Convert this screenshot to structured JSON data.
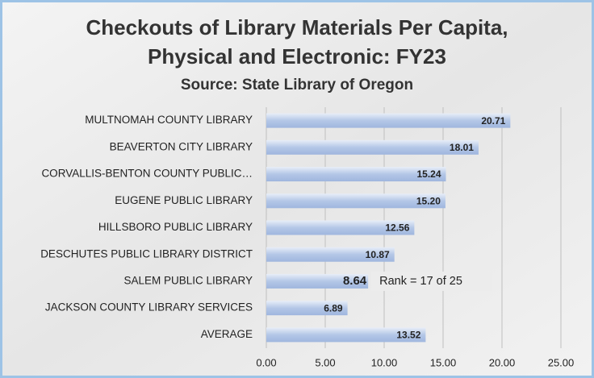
{
  "chart_data": {
    "type": "hbar",
    "title": [
      "Checkouts of Library Materials Per Capita,",
      "Physical and Electronic: FY23"
    ],
    "subtitle": "Source: State Library of Oregon",
    "categories": [
      "MULTNOMAH COUNTY LIBRARY",
      "BEAVERTON CITY LIBRARY",
      "CORVALLIS-BENTON COUNTY PUBLIC…",
      "EUGENE PUBLIC LIBRARY",
      "HILLSBORO PUBLIC LIBRARY",
      "DESCHUTES PUBLIC LIBRARY DISTRICT",
      "SALEM PUBLIC LIBRARY",
      "JACKSON COUNTY LIBRARY SERVICES",
      "AVERAGE"
    ],
    "values": [
      20.71,
      18.01,
      15.24,
      15.2,
      12.56,
      10.87,
      8.64,
      6.89,
      13.52
    ],
    "value_labels": [
      "20.71",
      "18.01",
      "15.24",
      "15.20",
      "12.56",
      "10.87",
      "8.64",
      "6.89",
      "13.52"
    ],
    "color": "#b4c7e7",
    "xlim": [
      0,
      25
    ],
    "xticks": [
      {
        "value": 0,
        "label": "0.00"
      },
      {
        "value": 5,
        "label": "5.00"
      },
      {
        "value": 10,
        "label": "10.00"
      },
      {
        "value": 15,
        "label": "15.00"
      },
      {
        "value": 20,
        "label": "20.00"
      },
      {
        "value": 25,
        "label": "25.00"
      }
    ],
    "grid": true,
    "annotations": [
      {
        "text": "Rank = 17 of 25",
        "category_index": 6
      }
    ]
  }
}
